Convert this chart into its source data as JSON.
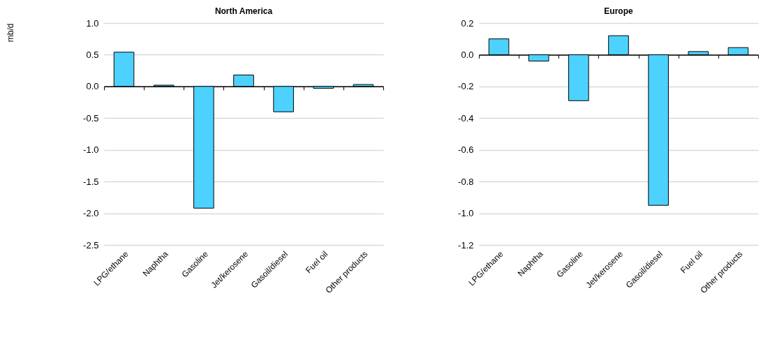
{
  "chart_data": [
    {
      "type": "bar",
      "title": "North America",
      "ylabel": "mb/d",
      "categories": [
        "LPG/ethane",
        "Naphtha",
        "Gasoline",
        "Jet/kerosene",
        "Gasoil/diesel",
        "Fuel oil",
        "Other products"
      ],
      "values": [
        0.54,
        0.02,
        -1.92,
        0.18,
        -0.4,
        -0.03,
        0.03
      ],
      "color": "#4dd2ff",
      "ylim": [
        -2.5,
        1.0
      ],
      "yticks": [
        {
          "value": -2.5,
          "label": "-2.5"
        },
        {
          "value": -2,
          "label": "-2.0"
        },
        {
          "value": -1.5,
          "label": "-1.5"
        },
        {
          "value": -1,
          "label": "-1.0"
        },
        {
          "value": -0.5,
          "label": "-0.5"
        },
        {
          "value": 0,
          "label": "0.0"
        },
        {
          "value": 0.5,
          "label": "0.5"
        },
        {
          "value": 1,
          "label": "1.0"
        }
      ],
      "grid": "y"
    },
    {
      "type": "bar",
      "title": "Europe",
      "categories": [
        "LPG/ethane",
        "Naphtha",
        "Gasoline",
        "Jet/kerosene",
        "Gasoil/diesel",
        "Fuel oil",
        "Other products"
      ],
      "values": [
        0.1,
        -0.04,
        -0.29,
        0.12,
        -0.95,
        0.02,
        0.045
      ],
      "color": "#4dd2ff",
      "ylim": [
        -1.2,
        0.2
      ],
      "yticks": [
        {
          "value": -1.2,
          "label": "-1.2"
        },
        {
          "value": -1,
          "label": "-1.0"
        },
        {
          "value": -0.8,
          "label": "-0.8"
        },
        {
          "value": -0.6,
          "label": "-0.6"
        },
        {
          "value": -0.4,
          "label": "-0.4"
        },
        {
          "value": -0.2,
          "label": "-0.2"
        },
        {
          "value": 0,
          "label": "0.0"
        },
        {
          "value": 0.2,
          "label": "0.2"
        }
      ],
      "grid": "y"
    }
  ]
}
